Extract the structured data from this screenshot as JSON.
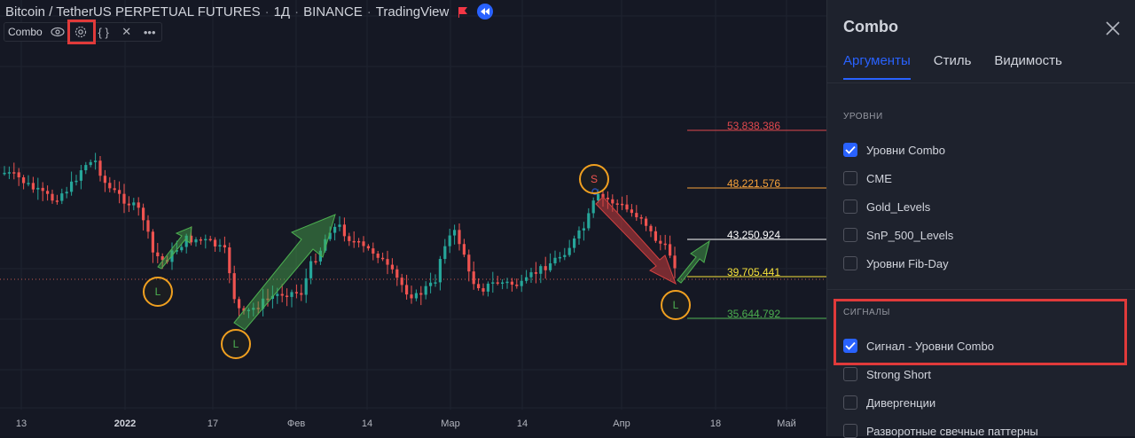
{
  "chart": {
    "symbol": "Bitcoin / TetherUS PERPETUAL FUTURES",
    "interval": "1Д",
    "exchange": "BINANCE",
    "platform": "TradingView",
    "indicator_name": "Combo",
    "x_labels": [
      "13",
      "2022",
      "17",
      "Фев",
      "14",
      "Мар",
      "14",
      "Апр",
      "18",
      "Май"
    ],
    "levels": [
      {
        "value": "53,838.386",
        "color": "#e0494e"
      },
      {
        "value": "48,221.576",
        "color": "#f7a23a"
      },
      {
        "value": "43,250.924",
        "color": "#ffffff"
      },
      {
        "value": "39,705.441",
        "color": "#f5e13a"
      },
      {
        "value": "35,644.792",
        "color": "#4caf50"
      }
    ],
    "signals": [
      {
        "label": "L"
      },
      {
        "label": "L"
      },
      {
        "label": "S"
      },
      {
        "label": "L"
      }
    ],
    "colors": {
      "up": "#26a69a",
      "down": "#ef5350",
      "highlight": "#e03a3a"
    }
  },
  "panel": {
    "title": "Combo",
    "tabs": [
      "Аргументы",
      "Стиль",
      "Видимость"
    ],
    "active_tab": "Аргументы",
    "levels_section": {
      "title": "УРОВНИ",
      "items": [
        {
          "label": "Уровни Combo",
          "checked": true
        },
        {
          "label": "CME",
          "checked": false
        },
        {
          "label": "Gold_Levels",
          "checked": false
        },
        {
          "label": "SnP_500_Levels",
          "checked": false
        },
        {
          "label": "Уровни Fib-Day",
          "checked": false
        }
      ]
    },
    "signals_section": {
      "title": "СИГНАЛЫ",
      "items": [
        {
          "label": "Сигнал - Уровни Combo",
          "checked": true
        },
        {
          "label": "Strong Short",
          "checked": false
        },
        {
          "label": "Дивергенции",
          "checked": false
        },
        {
          "label": "Разворотные свечные паттерны",
          "checked": false
        }
      ]
    }
  }
}
